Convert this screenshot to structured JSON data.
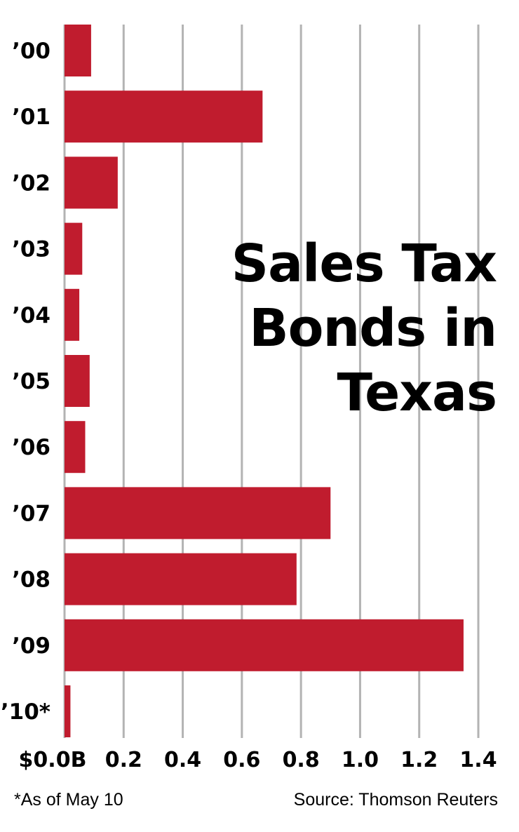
{
  "chart_data": {
    "type": "bar",
    "orientation": "horizontal",
    "title_lines": [
      "Sales Tax",
      "Bonds in",
      "Texas"
    ],
    "categories": [
      "’00",
      "’01",
      "’02",
      "’03",
      "’04",
      "’05",
      "’06",
      "’07",
      "’08",
      "’09",
      "’10*"
    ],
    "values": [
      0.09,
      0.67,
      0.18,
      0.06,
      0.05,
      0.085,
      0.07,
      0.9,
      0.785,
      1.35,
      0.02
    ],
    "xlim": [
      0,
      1.4
    ],
    "xticks": [
      0,
      0.2,
      0.4,
      0.6,
      0.8,
      1.0,
      1.2,
      1.4
    ],
    "xtick_labels": [
      "$0.0B",
      "0.2",
      "0.4",
      "0.6",
      "0.8",
      "1.0",
      "1.2",
      "1.4"
    ],
    "grid": "vertical",
    "bar_color": "#c01c2e",
    "grid_color": "#b3b3b3"
  },
  "footnote": "*As of May 10",
  "source": "Source: Thomson Reuters"
}
